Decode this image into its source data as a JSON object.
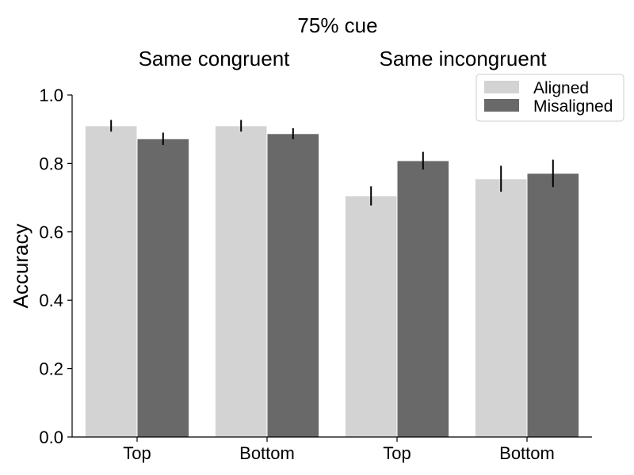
{
  "chart_data": {
    "type": "bar",
    "title": "75% cue",
    "group_labels": [
      "Same congruent",
      "Same incongruent"
    ],
    "categories": [
      "Top",
      "Bottom",
      "Top",
      "Bottom"
    ],
    "xlabel": "",
    "ylabel": "Accuracy",
    "ylim": [
      0,
      1.0
    ],
    "yticks": [
      "0.0",
      "0.2",
      "0.4",
      "0.6",
      "0.8",
      "1.0"
    ],
    "grid": false,
    "legend_position": "top-right",
    "series": [
      {
        "name": "Aligned",
        "color": "#d3d3d3",
        "values": [
          0.91,
          0.91,
          0.705,
          0.755
        ],
        "errors": [
          0.017,
          0.017,
          0.028,
          0.038
        ]
      },
      {
        "name": "Misaligned",
        "color": "#696969",
        "values": [
          0.872,
          0.887,
          0.808,
          0.771
        ],
        "errors": [
          0.018,
          0.016,
          0.026,
          0.04
        ]
      }
    ]
  }
}
